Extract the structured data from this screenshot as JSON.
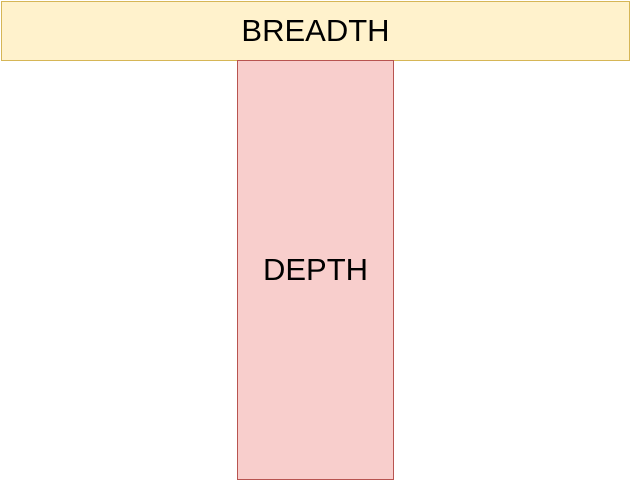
{
  "diagram": {
    "boxes": [
      {
        "id": "breadth",
        "label": "BREADTH",
        "fill": "#fff2cc",
        "stroke": "#d6b656"
      },
      {
        "id": "depth",
        "label": "DEPTH",
        "fill": "#f8cecc",
        "stroke": "#b85450"
      }
    ]
  }
}
